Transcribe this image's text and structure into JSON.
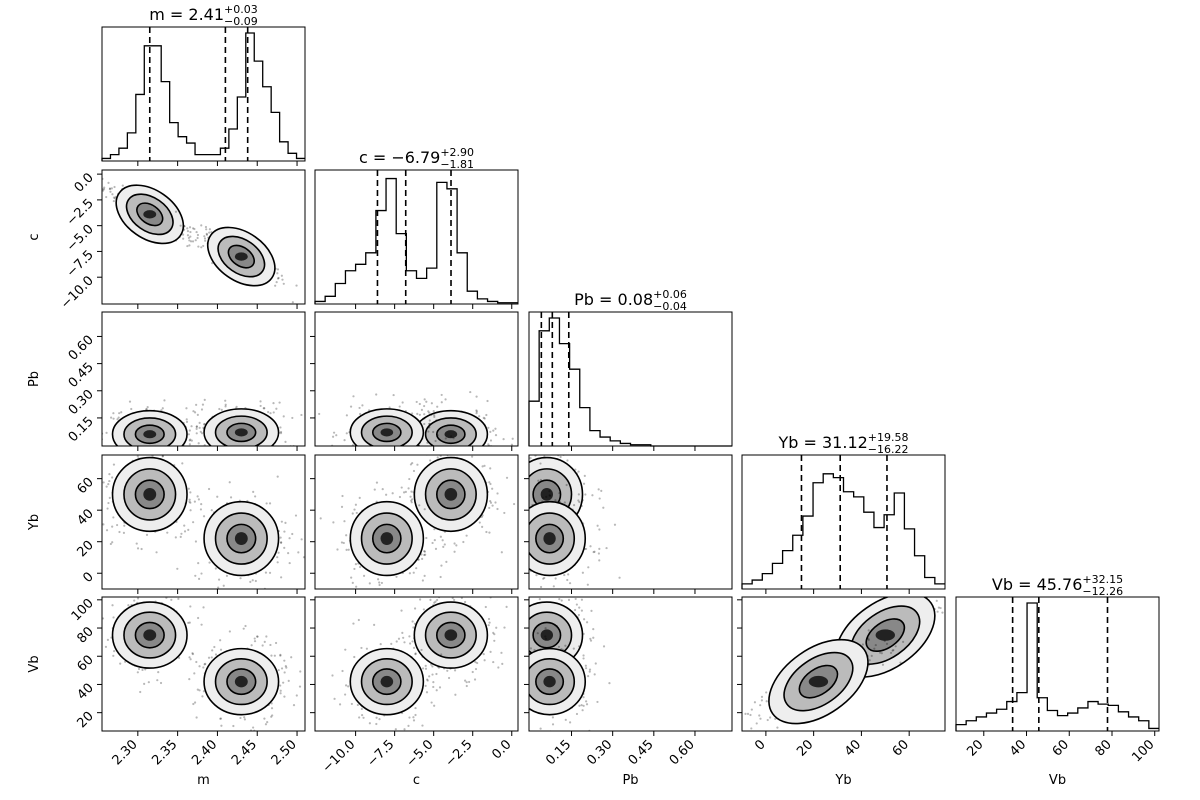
{
  "chart_data": {
    "type": "corner",
    "parameters": [
      {
        "name": "m",
        "label": "m",
        "range": [
          2.255,
          2.51
        ],
        "ticks": [
          2.3,
          2.35,
          2.4,
          2.45,
          2.5
        ],
        "tick_labels": [
          "2.30",
          "2.35",
          "2.40",
          "2.45",
          "2.50"
        ],
        "median": 2.41,
        "plus": 0.03,
        "minus": 0.09,
        "quantiles": [
          2.315,
          2.41,
          2.438
        ],
        "title": "m = 2.41",
        "title_sup": "+0.03",
        "title_sub": "−0.09",
        "hist": [
          0.02,
          0.05,
          0.1,
          0.22,
          0.52,
          0.9,
          0.9,
          0.62,
          0.3,
          0.19,
          0.14,
          0.05,
          0.05,
          0.05,
          0.1,
          0.25,
          0.5,
          1.0,
          0.78,
          0.58,
          0.38,
          0.15,
          0.06,
          0.02
        ]
      },
      {
        "name": "c",
        "label": "c",
        "range": [
          -12.6,
          0.4
        ],
        "ticks": [
          -10.0,
          -7.5,
          -5.0,
          -2.5,
          0.0
        ],
        "tick_labels": [
          "−10.0",
          "−7.5",
          "−5.0",
          "−2.5",
          "0.0"
        ],
        "median": -6.79,
        "plus": 2.9,
        "minus": 1.81,
        "quantiles": [
          -8.6,
          -6.79,
          -3.89
        ],
        "title": "c = −6.79",
        "title_sup": "+2.90",
        "title_sub": "−1.81",
        "hist": [
          0.02,
          0.06,
          0.16,
          0.26,
          0.31,
          0.4,
          0.73,
          0.98,
          0.55,
          0.26,
          0.2,
          0.28,
          0.95,
          0.9,
          0.4,
          0.1,
          0.04,
          0.02,
          0.01,
          0.01
        ]
      },
      {
        "name": "Pb",
        "label": "Pb",
        "range": [
          -0.005,
          0.735
        ],
        "ticks": [
          0.15,
          0.3,
          0.45,
          0.6
        ],
        "tick_labels": [
          "0.15",
          "0.30",
          "0.45",
          "0.60"
        ],
        "median": 0.08,
        "plus": 0.06,
        "minus": 0.04,
        "quantiles": [
          0.04,
          0.08,
          0.14
        ],
        "title": "Pb = 0.08",
        "title_sup": "+0.06",
        "title_sub": "−0.04",
        "hist": [
          0.35,
          0.9,
          1.0,
          0.8,
          0.6,
          0.3,
          0.12,
          0.07,
          0.04,
          0.02,
          0.01,
          0.01,
          0.0,
          0.0,
          0.0,
          0.0,
          0.0,
          0.0,
          0.0,
          0.0
        ]
      },
      {
        "name": "Yb",
        "label": "Yb",
        "range": [
          -10,
          75
        ],
        "ticks": [
          0,
          20,
          40,
          60
        ],
        "tick_labels": [
          "0",
          "20",
          "40",
          "60"
        ],
        "median": 31.12,
        "plus": 19.58,
        "minus": 16.22,
        "quantiles": [
          14.9,
          31.12,
          50.7
        ],
        "title": "Yb = 31.12",
        "title_sup": "+19.58",
        "title_sub": "−16.22",
        "hist": [
          0.04,
          0.07,
          0.12,
          0.2,
          0.3,
          0.42,
          0.57,
          0.83,
          0.9,
          0.87,
          0.76,
          0.72,
          0.6,
          0.48,
          0.58,
          0.75,
          0.47,
          0.26,
          0.09,
          0.04
        ]
      },
      {
        "name": "Vb",
        "label": "Vb",
        "range": [
          7,
          102
        ],
        "ticks": [
          20,
          40,
          60,
          80,
          100
        ],
        "tick_labels": [
          "20",
          "40",
          "60",
          "80",
          "100"
        ],
        "median": 45.76,
        "plus": 32.15,
        "minus": 12.26,
        "quantiles": [
          33.5,
          45.76,
          77.9
        ],
        "title": "Vb = 45.76",
        "title_sup": "+32.15",
        "title_sub": "−12.26",
        "hist": [
          0.05,
          0.08,
          0.11,
          0.14,
          0.17,
          0.23,
          0.3,
          1.0,
          0.26,
          0.16,
          0.12,
          0.14,
          0.18,
          0.23,
          0.21,
          0.2,
          0.15,
          0.11,
          0.08,
          0.02
        ]
      }
    ],
    "modes": [
      {
        "m": 2.315,
        "c": -3.9,
        "Pb": 0.06,
        "Yb": 50,
        "Vb": 75
      },
      {
        "m": 2.43,
        "c": -8.0,
        "Pb": 0.07,
        "Yb": 22,
        "Vb": 42
      }
    ]
  }
}
